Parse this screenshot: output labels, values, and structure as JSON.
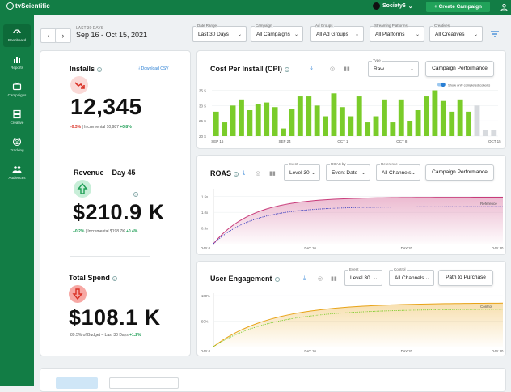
{
  "brand": {
    "name": "tvScientific"
  },
  "header": {
    "account": "Society6",
    "create_label": "+ Create Campaign"
  },
  "nav": [
    {
      "label": "Dashboard",
      "icon": "dashboard-icon",
      "active": true
    },
    {
      "label": "Reports",
      "icon": "bar-chart-icon"
    },
    {
      "label": "Campaigns",
      "icon": "tv-icon"
    },
    {
      "label": "Creative",
      "icon": "film-icon"
    },
    {
      "label": "Tracking",
      "icon": "target-icon"
    },
    {
      "label": "Audiences",
      "icon": "people-icon"
    }
  ],
  "date": {
    "sub": "LAST 30 DAYS",
    "range": "Sep 16 - Oct 15, 2021",
    "prev": "‹",
    "next": "›"
  },
  "filters": [
    {
      "label": "Date Range",
      "value": "Last 30 Days"
    },
    {
      "label": "Campaign",
      "value": "All Campaigns"
    },
    {
      "label": "Ad Groups",
      "value": "All Ad Groups"
    },
    {
      "label": "Streaming Platforms",
      "value": "All Platforms"
    },
    {
      "label": "Creatives",
      "value": "All Creatives"
    }
  ],
  "kpis": {
    "download": "Download CSV",
    "installs": {
      "title": "Installs",
      "value": "12,345",
      "delta": "-0.3%",
      "incr_label": "Incremental",
      "incr": "10,987",
      "incr_delta": "+0.8%"
    },
    "revenue": {
      "title": "Revenue – Day 45",
      "value": "$210.9 K",
      "delta": "+0.2%",
      "incr_label": "Incremental",
      "incr": "$198.7K",
      "incr_delta": "+0.4%"
    },
    "spend": {
      "title": "Total Spend",
      "value": "$108.1 K",
      "sub": "89.5% of Budget – Last 30 Days",
      "sub_delta": "+1.2%"
    }
  },
  "cpi": {
    "title": "Cost Per Install (CPI)",
    "type_label": "Type",
    "type_value": "Raw",
    "button": "Campaign Performance",
    "toggle": "Show only completed cohorts",
    "chart_data": {
      "type": "bar",
      "title": "Cost Per Install (CPI)",
      "y_ticks": [
        "20 $",
        "25 $",
        "30 $",
        "35 $"
      ],
      "ylim": [
        20,
        37
      ],
      "x_ticks": [
        "SEP 16",
        "SEP 24",
        "OCT 1",
        "OCT 8",
        "OCT 15"
      ],
      "values": [
        28,
        24.5,
        30,
        32,
        28.5,
        30.5,
        31,
        29.5,
        22.5,
        29,
        33,
        33,
        30,
        26.5,
        34,
        29.5,
        26.5,
        33,
        24.5,
        26.5,
        32,
        24.5,
        32,
        25,
        28.5,
        33,
        35,
        31.5,
        28,
        32,
        28,
        30,
        22,
        22
      ],
      "incomplete_count": 3,
      "colors": {
        "complete": "#7acc2a",
        "incomplete": "#d7dade"
      }
    }
  },
  "roas": {
    "title": "ROAS",
    "event_label": "Event",
    "event_value": "Level 30",
    "roas_label": "ROAS by",
    "roas_value": "Event Date",
    "ref_label": "Reference",
    "ref_value": "All Channels",
    "button": "Campaign Performance",
    "chart_data": {
      "type": "area",
      "y_ticks": [
        "0.5x",
        "1.0x",
        "1.5x"
      ],
      "ylim": [
        0,
        1.75
      ],
      "x_ticks": [
        "DAY 0",
        "DAY 10",
        "DAY 20",
        "DAY 30"
      ],
      "series": [
        {
          "name": "",
          "end": 1.48,
          "color": "#c83b7a"
        },
        {
          "name": "Reference",
          "end": 1.18,
          "color": "#3b3fbf"
        }
      ]
    }
  },
  "engagement": {
    "title": "User Engagement",
    "event_label": "Event",
    "event_value": "Level 30",
    "control_label": "Control",
    "control_value": "All Channels",
    "button": "Path to Purchase",
    "chart_data": {
      "type": "area",
      "y_ticks": [
        "50%",
        "100%"
      ],
      "ylim": [
        0,
        1.05
      ],
      "x_ticks": [
        "DAY 0",
        "DAY 10",
        "DAY 20",
        "DAY 30"
      ],
      "series": [
        {
          "name": "",
          "end": 0.86,
          "color": "#e8a317"
        },
        {
          "name": "Control",
          "end": 0.74,
          "color": "#7acc2a"
        }
      ]
    }
  }
}
